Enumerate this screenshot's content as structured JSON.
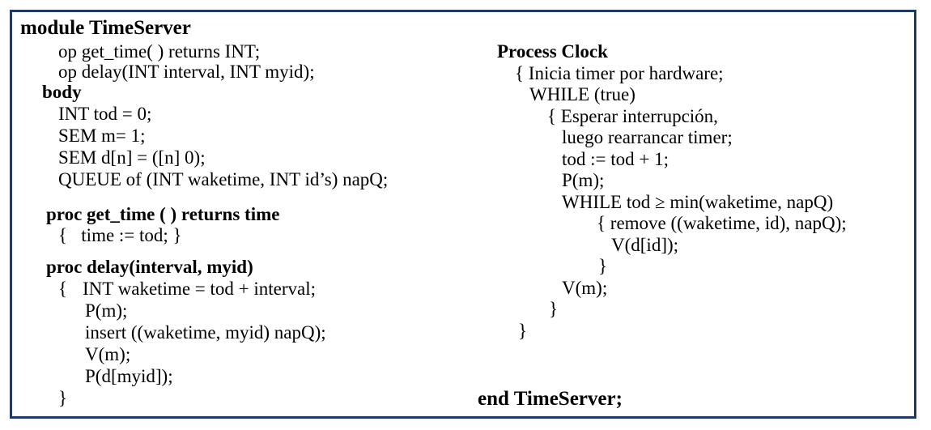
{
  "module_header": "module TimeServer",
  "ops": [
    "op get_time( ) returns INT;",
    "op delay(INT interval, INT myid);"
  ],
  "body_label": "body",
  "decls": [
    "INT tod = 0;",
    "SEM m= 1;",
    "SEM d[n] = ([n] 0);",
    "QUEUE of (INT waketime, INT id’s) napQ;"
  ],
  "get_time_proc": {
    "header": "proc get_time ( ) returns time",
    "body": "{   time := tod; }"
  },
  "delay_proc": {
    "header": "proc delay(interval, myid)",
    "open": "{",
    "first_stmt": "INT waketime = tod + interval;",
    "stmts": [
      "P(m);",
      "insert ((waketime, myid) napQ);",
      "V(m);",
      "P(d[myid]);"
    ],
    "close": "}"
  },
  "clock": {
    "header": "Process Clock",
    "l1": "{ Inicia timer por hardware;",
    "l2": "WHILE (true)",
    "l3": "{ Esperar interrupción,",
    "l4": "luego rearrancar timer;",
    "l5": "tod := tod + 1;",
    "l6": "P(m);",
    "l7": "WHILE tod ≥ min(waketime, napQ)",
    "l8": "{ remove ((waketime, id), napQ);",
    "l9": "V(d[id]);",
    "l10": "}",
    "l11": "V(m);",
    "l12": "}",
    "l13": "}"
  },
  "footer": "end TimeServer;"
}
